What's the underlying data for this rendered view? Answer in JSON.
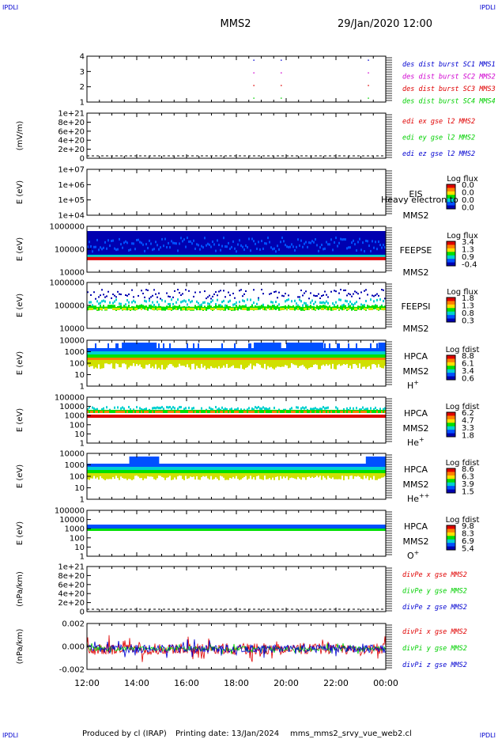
{
  "header": {
    "corner_label": "IPDLI",
    "spacecraft": "MMS2",
    "datetime": "29/Jan/2020 12:00"
  },
  "footer": {
    "produced_by": "Produced by cl (IRAP)",
    "printing_date": "Printing date: 13/Jan/2024",
    "script_name": "mms_mms2_srvy_vue_web2.cl"
  },
  "colors": {
    "blue": "#0000d0",
    "magenta": "#d000d0",
    "red": "#e00000",
    "green": "#00d000",
    "spectrogram_scale": [
      "#0000b0",
      "#0050ff",
      "#00d0d0",
      "#00e000",
      "#d0e000",
      "#ff8000",
      "#e00000"
    ]
  },
  "chart_data": [
    {
      "type": "scatter",
      "id": "des_dist",
      "ylabel": "",
      "yticks": [
        "4",
        "3",
        "2",
        "1"
      ],
      "ylim": [
        0.5,
        4.5
      ],
      "legend": [
        {
          "name": "des dist burst SC1 MMS1",
          "color": "#0000d0"
        },
        {
          "name": "des dist burst SC2 MMS2",
          "color": "#d000d0"
        },
        {
          "name": "des dist burst SC3 MMS3",
          "color": "#e00000"
        },
        {
          "name": "des dist burst SC4 MMS4",
          "color": "#00d000"
        }
      ],
      "burst_times_h": [
        18.7,
        19.8,
        23.3
      ]
    },
    {
      "type": "line",
      "id": "edi",
      "ylabel": "(mV/m)",
      "yticks": [
        "1e+21",
        "8e+20",
        "6e+20",
        "4e+20",
        "2e+20",
        "0"
      ],
      "ylim": [
        0,
        1e+21
      ],
      "dashed_zero": true,
      "legend": [
        {
          "name": "edi ex gse l2 MMS2",
          "color": "#e00000"
        },
        {
          "name": "edi ey gse l2 MMS2",
          "color": "#00d000"
        },
        {
          "name": "edi ez gse l2 MMS2",
          "color": "#0000d0"
        }
      ]
    },
    {
      "type": "heatmap",
      "id": "eis",
      "ylabel": "E (eV)",
      "yticks": [
        "1e+07",
        "1e+06",
        "1e+05",
        "1e+04"
      ],
      "ylim_log": [
        4,
        7
      ],
      "instrument": "EIS",
      "sc": "MMS2",
      "species": "",
      "overlay_text": "Heavy electron to",
      "cbar_title": "Log flux",
      "cbar_ticks": [
        "0.0",
        "0.0",
        "0.0",
        "0.0"
      ],
      "band_log": null,
      "noise_log": null
    },
    {
      "type": "heatmap",
      "id": "feepse",
      "ylabel": "E (eV)",
      "yticks": [
        "1000000",
        "100000",
        "10000"
      ],
      "ylim_log": [
        4,
        6
      ],
      "instrument": "FEEPSE",
      "sc": "MMS2",
      "species": "",
      "cbar_title": "Log flux",
      "cbar_ticks": [
        "3.4",
        "1.3",
        "0.9",
        "-0.4"
      ],
      "mode": "feepse"
    },
    {
      "type": "heatmap",
      "id": "feepsi",
      "ylabel": "E (eV)",
      "yticks": [
        "1000000",
        "100000",
        "10000"
      ],
      "ylim_log": [
        4,
        6
      ],
      "instrument": "FEEPSI",
      "sc": "MMS2",
      "species": "",
      "cbar_title": "Log flux",
      "cbar_ticks": [
        "1.8",
        "1.3",
        "0.8",
        "0.3"
      ],
      "mode": "feepsi"
    },
    {
      "type": "heatmap",
      "id": "hpca_h",
      "ylabel": "E (eV)",
      "yticks": [
        "10000",
        "1000",
        "100",
        "10",
        "1"
      ],
      "ylim_log": [
        0,
        4.3
      ],
      "instrument": "HPCA",
      "sc": "MMS2",
      "species": "H",
      "species_sup": "+",
      "cbar_title": "Log fdist",
      "cbar_ticks": [
        "8.8",
        "6.1",
        "3.4",
        "0.6"
      ],
      "mode": "hpca_h"
    },
    {
      "type": "heatmap",
      "id": "hpca_he",
      "ylabel": "E (eV)",
      "yticks": [
        "100000",
        "10000",
        "1000",
        "100",
        "10",
        "1"
      ],
      "ylim_log": [
        0,
        5
      ],
      "instrument": "HPCA",
      "sc": "MMS2",
      "species": "He",
      "species_sup": "+",
      "cbar_title": "Log fdist",
      "cbar_ticks": [
        "6.2",
        "4.7",
        "3.3",
        "1.8"
      ],
      "mode": "hpca_he"
    },
    {
      "type": "heatmap",
      "id": "hpca_hepp",
      "ylabel": "E (eV)",
      "yticks": [
        "10000",
        "1000",
        "100",
        "10",
        "1"
      ],
      "ylim_log": [
        0,
        4.3
      ],
      "instrument": "HPCA",
      "sc": "MMS2",
      "species": "He",
      "species_sup": "++",
      "cbar_title": "Log fdist",
      "cbar_ticks": [
        "8.6",
        "6.3",
        "3.9",
        "1.5"
      ],
      "mode": "hpca_hepp"
    },
    {
      "type": "heatmap",
      "id": "hpca_o",
      "ylabel": "E (eV)",
      "yticks": [
        "100000",
        "10000",
        "1000",
        "100",
        "10",
        "1"
      ],
      "ylim_log": [
        0,
        5
      ],
      "instrument": "HPCA",
      "sc": "MMS2",
      "species": "O",
      "species_sup": "+",
      "cbar_title": "Log fdist",
      "cbar_ticks": [
        "9.8",
        "8.3",
        "6.9",
        "5.4"
      ],
      "mode": "hpca_o"
    },
    {
      "type": "line",
      "id": "divpe",
      "ylabel": "(nPa/km)",
      "yticks": [
        "1e+21",
        "8e+20",
        "6e+20",
        "4e+20",
        "2e+20",
        "0"
      ],
      "ylim": [
        0,
        1e+21
      ],
      "dashed_zero": true,
      "legend": [
        {
          "name": "divPe x gse MMS2",
          "color": "#e00000"
        },
        {
          "name": "divPe y gse MMS2",
          "color": "#00d000"
        },
        {
          "name": "divPe z gse MMS2",
          "color": "#0000d0"
        }
      ]
    },
    {
      "type": "line",
      "id": "divpi",
      "ylabel": "(nPa/km)",
      "yticks": [
        "0.002",
        "0.000",
        "-0.002"
      ],
      "ylim": [
        -0.0034,
        0.0034
      ],
      "legend": [
        {
          "name": "divPi x gse MMS2",
          "color": "#e00000"
        },
        {
          "name": "divPi y gse MMS2",
          "color": "#00d000"
        },
        {
          "name": "divPi z gse MMS2",
          "color": "#0000d0"
        }
      ]
    }
  ],
  "xaxis": {
    "tick_labels": [
      "12:00",
      "14:00",
      "16:00",
      "18:00",
      "20:00",
      "22:00",
      "00:00"
    ],
    "range_hours": [
      12,
      24
    ]
  }
}
